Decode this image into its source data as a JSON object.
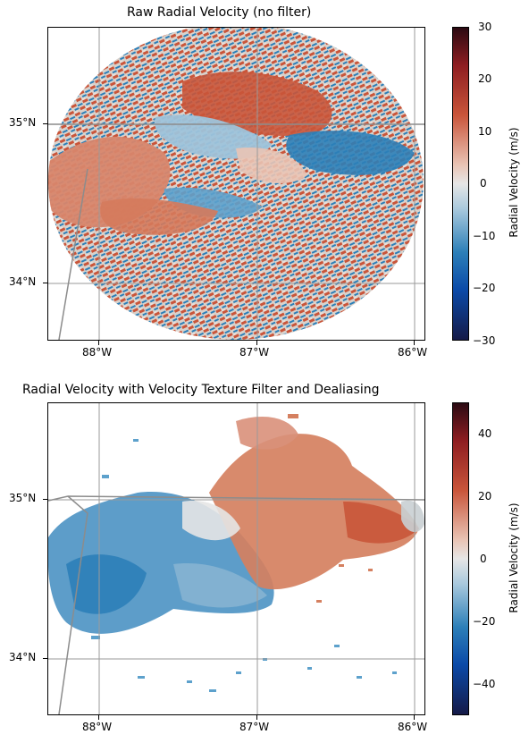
{
  "panels": [
    {
      "title": "Raw Radial Velocity (no filter)",
      "lat_ticks": [
        "35°N",
        "34°N"
      ],
      "lon_ticks": [
        "88°W",
        "87°W",
        "86°W"
      ],
      "colorbar": {
        "label": "Radial Velocity (m/s)",
        "ticks": [
          "30",
          "20",
          "10",
          "0",
          "−10",
          "−20",
          "−30"
        ],
        "min": -30,
        "max": 30
      }
    },
    {
      "title": "Radial Velocity with Velocity Texture Filter and Dealiasing",
      "lat_ticks": [
        "35°N",
        "34°N"
      ],
      "lon_ticks": [
        "88°W",
        "87°W",
        "86°W"
      ],
      "colorbar": {
        "label": "Radial Velocity (m/s)",
        "ticks": [
          "40",
          "20",
          "0",
          "−20",
          "−40"
        ],
        "min": -50,
        "max": 50
      }
    }
  ],
  "colors": {
    "positive": "#c9553a",
    "negative": "#2c7fb8",
    "neutral": "#e6e6e6",
    "borders": "#8c8c8c"
  }
}
